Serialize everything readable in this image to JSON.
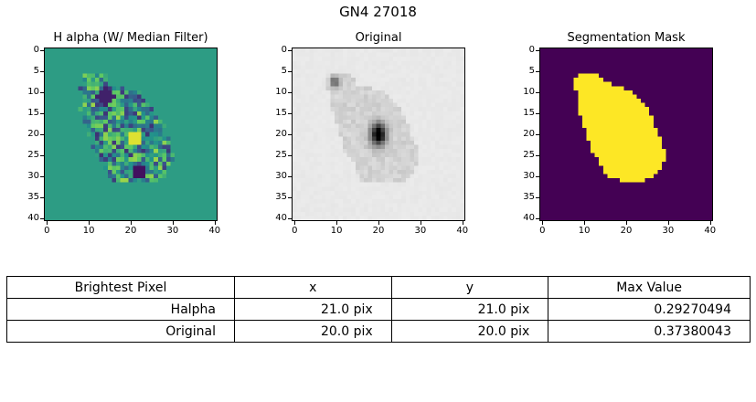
{
  "figure": {
    "suptitle": "GN4 27018"
  },
  "chart_data": [
    {
      "type": "heatmap",
      "title": "H alpha (W/ Median Filter)",
      "colormap": "viridis",
      "background_color": "#21a685",
      "xlim": [
        0,
        41
      ],
      "ylim": [
        41,
        0
      ],
      "x_ticks": [
        "0",
        "10",
        "20",
        "30",
        "40"
      ],
      "y_ticks": [
        "0",
        "5",
        "10",
        "15",
        "20",
        "25",
        "30",
        "35",
        "40"
      ],
      "brightest_pixel": {
        "x": 21.0,
        "y": 21.0,
        "value": 0.29270494
      }
    },
    {
      "type": "heatmap",
      "title": "Original",
      "colormap": "gray_r",
      "xlim": [
        0,
        41
      ],
      "ylim": [
        41,
        0
      ],
      "x_ticks": [
        "0",
        "10",
        "20",
        "30",
        "40"
      ],
      "y_ticks": [
        "0",
        "5",
        "10",
        "15",
        "20",
        "25",
        "30",
        "35",
        "40"
      ],
      "brightest_pixel": {
        "x": 20.0,
        "y": 20.0,
        "value": 0.37380043
      }
    },
    {
      "type": "heatmap",
      "title": "Segmentation Mask",
      "colormap": "viridis",
      "mask_color": "#fde725",
      "background_color": "#440154",
      "xlim": [
        0,
        41
      ],
      "ylim": [
        41,
        0
      ],
      "x_ticks": [
        "0",
        "10",
        "20",
        "30",
        "40"
      ],
      "y_ticks": [
        "0",
        "5",
        "10",
        "15",
        "20",
        "25",
        "30",
        "35",
        "40"
      ],
      "mask_outline": [
        [
          9,
          6
        ],
        [
          14,
          6
        ],
        [
          15,
          8
        ],
        [
          19,
          9
        ],
        [
          22,
          10
        ],
        [
          24,
          12
        ],
        [
          26,
          15
        ],
        [
          27,
          17
        ],
        [
          28,
          20
        ],
        [
          29,
          22
        ],
        [
          30,
          26
        ],
        [
          29,
          28
        ],
        [
          27,
          31
        ],
        [
          23,
          32
        ],
        [
          16,
          31
        ],
        [
          15,
          29
        ],
        [
          14,
          26
        ],
        [
          12,
          24
        ],
        [
          11,
          20
        ],
        [
          10,
          17
        ],
        [
          9,
          14
        ],
        [
          9,
          10
        ],
        [
          8,
          9
        ]
      ]
    }
  ],
  "table": {
    "columns": [
      "Brightest Pixel",
      "x",
      "y",
      "Max Value"
    ],
    "rows": [
      [
        "Halpha",
        "21.0 pix",
        "21.0 pix",
        "0.29270494"
      ],
      [
        "Original",
        "20.0 pix",
        "20.0 pix",
        "0.37380043"
      ]
    ]
  }
}
